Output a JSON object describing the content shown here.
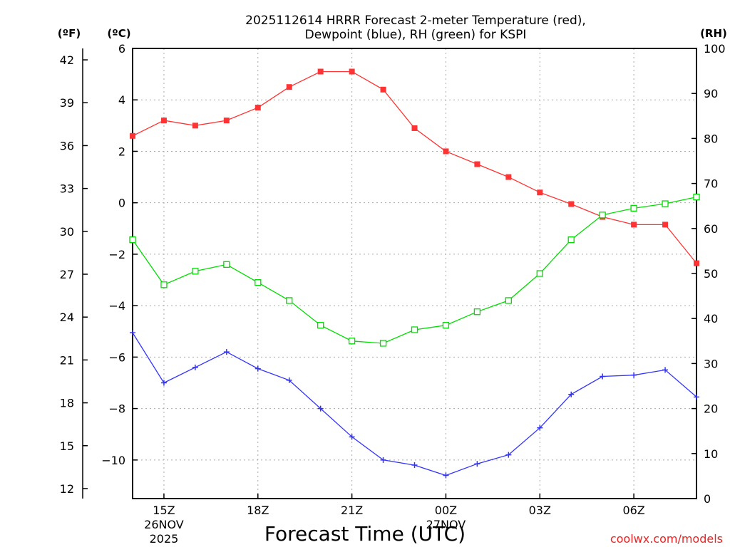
{
  "chart_data": {
    "type": "line",
    "title_line1": "2025112614 HRRR Forecast 2-meter Temperature (red),",
    "title_line2": "Dewpoint (blue), RH (green) for KSPI",
    "xlabel": "Forecast Time (UTC)",
    "watermark": "coolwx.com/models",
    "unit_f": "(ºF)",
    "unit_c": "(ºC)",
    "unit_rh": "(RH)",
    "x_hours": [
      14,
      15,
      16,
      17,
      18,
      19,
      20,
      21,
      22,
      23,
      24,
      25,
      26,
      27,
      28,
      29,
      30,
      31,
      32
    ],
    "x_ticks": [
      {
        "hour": 15,
        "label": "15Z"
      },
      {
        "hour": 18,
        "label": "18Z"
      },
      {
        "hour": 21,
        "label": "21Z"
      },
      {
        "hour": 24,
        "label": "00Z"
      },
      {
        "hour": 27,
        "label": "03Z"
      },
      {
        "hour": 30,
        "label": "06Z"
      }
    ],
    "date_labels": [
      {
        "hour": 15,
        "lines": [
          "26NOV",
          "2025"
        ]
      },
      {
        "hour": 24,
        "lines": [
          "27NOV"
        ]
      }
    ],
    "x_range": [
      14,
      32
    ],
    "y_left_c": {
      "range": [
        -11.5,
        6
      ],
      "ticks": [
        6,
        4,
        2,
        0,
        -2,
        -4,
        -6,
        -8,
        -10
      ],
      "tick_labels": [
        "6",
        "4",
        "2",
        "0",
        "−2",
        "−4",
        "−6",
        "−8",
        "−10"
      ]
    },
    "y_left_f": {
      "range": [
        11.3,
        42.8
      ],
      "ticks": [
        42,
        39,
        36,
        33,
        30,
        27,
        24,
        21,
        18,
        15,
        12
      ],
      "tick_labels": [
        "42",
        "39",
        "36",
        "33",
        "30",
        "27",
        "24",
        "21",
        "18",
        "15",
        "12"
      ]
    },
    "y_right_rh": {
      "range": [
        0,
        100
      ],
      "ticks": [
        100,
        90,
        80,
        70,
        60,
        50,
        40,
        30,
        20,
        10,
        0
      ],
      "tick_labels": [
        "100",
        "90",
        "80",
        "70",
        "60",
        "50",
        "40",
        "30",
        "20",
        "10",
        "0"
      ]
    },
    "grid": true,
    "series": [
      {
        "name": "Temperature",
        "axis": "c",
        "color": "#ff3333",
        "marker": "filled-square",
        "values": [
          2.6,
          3.2,
          3.0,
          3.2,
          3.7,
          4.5,
          5.1,
          5.1,
          4.4,
          2.9,
          2.0,
          1.5,
          1.0,
          0.4,
          -0.05,
          -0.55,
          -0.85,
          -0.85,
          -2.35
        ]
      },
      {
        "name": "Dewpoint",
        "axis": "c",
        "color": "#3333ff",
        "marker": "plus",
        "values": [
          -5.05,
          -7.0,
          -6.4,
          -5.8,
          -6.45,
          -6.9,
          -8.0,
          -9.1,
          -10.0,
          -10.2,
          -10.6,
          -10.15,
          -9.8,
          -8.75,
          -7.45,
          -6.75,
          -6.7,
          -6.5,
          -7.55
        ]
      },
      {
        "name": "RH",
        "axis": "rh",
        "color": "#00dd00",
        "marker": "open-square",
        "values": [
          57.5,
          47.5,
          50.5,
          52.0,
          48.0,
          44.0,
          38.5,
          35.0,
          34.5,
          37.5,
          38.5,
          41.5,
          44.0,
          50.0,
          57.5,
          63.0,
          64.5,
          65.5,
          67.0
        ]
      }
    ]
  }
}
